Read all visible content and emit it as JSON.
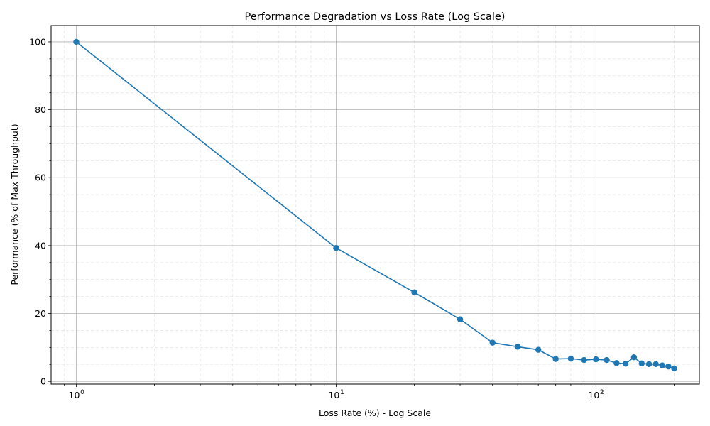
{
  "chart_data": {
    "type": "line",
    "title": "Performance Degradation vs Loss Rate (Log Scale)",
    "xlabel": "Loss Rate (%) - Log Scale",
    "ylabel": "Performance (% of Max Throughput)",
    "x_scale": "log",
    "xlim": [
      0.8,
      250
    ],
    "ylim": [
      -0.8,
      104.8
    ],
    "grid": true,
    "minor_grid": true,
    "x_major_ticks": [
      1,
      10,
      100
    ],
    "x_tick_labels": [
      {
        "base": "10",
        "exp": "0"
      },
      {
        "base": "10",
        "exp": "1"
      },
      {
        "base": "10",
        "exp": "2"
      }
    ],
    "y_ticks": [
      0,
      20,
      40,
      60,
      80,
      100
    ],
    "y_tick_labels": [
      "0",
      "20",
      "40",
      "60",
      "80",
      "100"
    ],
    "line_color": "#1f77b4",
    "marker": "circle",
    "x": [
      1,
      10,
      20,
      30,
      40,
      50,
      60,
      70,
      80,
      90,
      100,
      110,
      120,
      130,
      140,
      150,
      160,
      170,
      180,
      190,
      200
    ],
    "y": [
      100,
      39.3,
      26.2,
      18.3,
      11.4,
      10.2,
      9.3,
      6.6,
      6.7,
      6.3,
      6.5,
      6.3,
      5.4,
      5.2,
      7.1,
      5.3,
      5.1,
      5.1,
      4.7,
      4.4,
      3.8
    ]
  }
}
